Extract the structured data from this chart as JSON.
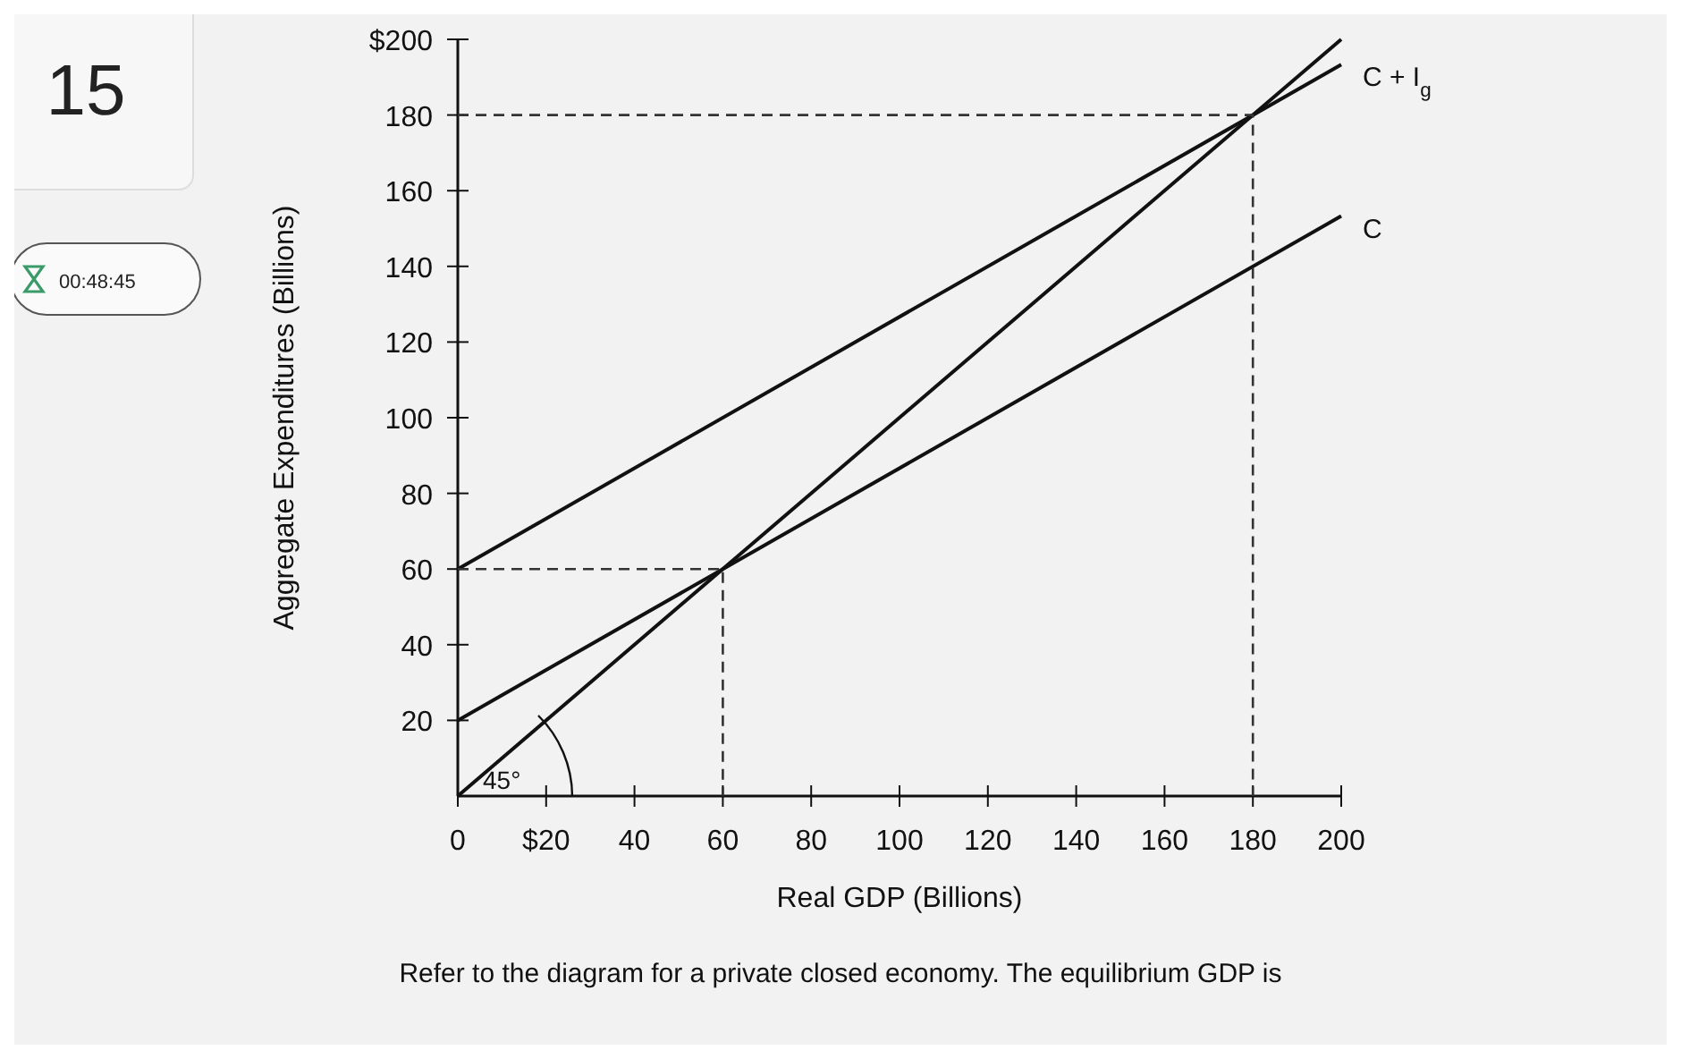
{
  "chart_data": {
    "type": "line",
    "xlabel": "Real GDP (Billions)",
    "ylabel": "Aggregate Expenditures (Billions)",
    "xlim": [
      0,
      200
    ],
    "ylim": [
      0,
      200
    ],
    "xticks": [
      {
        "value": 0,
        "label": "0"
      },
      {
        "value": 20,
        "label": "$20"
      },
      40,
      60,
      80,
      100,
      120,
      140,
      160,
      180,
      200
    ],
    "yticks": [
      20,
      40,
      60,
      80,
      100,
      120,
      140,
      160,
      180,
      {
        "value": 200,
        "label": "$200"
      }
    ],
    "grid": false,
    "marker": "none",
    "series": [
      {
        "name": "C + I$_{g}$",
        "color": "#111111",
        "x": [
          0,
          200
        ],
        "values": [
          60,
          193.3
        ]
      },
      {
        "name": "C",
        "color": "#111111",
        "x": [
          0,
          200
        ],
        "values": [
          20,
          153.3
        ]
      },
      {
        "color": "#111111",
        "x": [
          0,
          200
        ],
        "values": [
          0,
          200
        ]
      },
      {
        "color": "#333333",
        "x": [
          0,
          180,
          180
        ],
        "values": [
          180,
          180,
          0
        ],
        "line_style": "dashed"
      },
      {
        "color": "#333333",
        "x": [
          0,
          60,
          60
        ],
        "values": [
          60,
          60,
          0
        ],
        "line_style": "dashed"
      }
    ],
    "annotations": [
      "15",
      "00:48:45",
      "45°",
      "Refer to the diagram for a private closed economy. The equilibrium GDP is"
    ]
  }
}
